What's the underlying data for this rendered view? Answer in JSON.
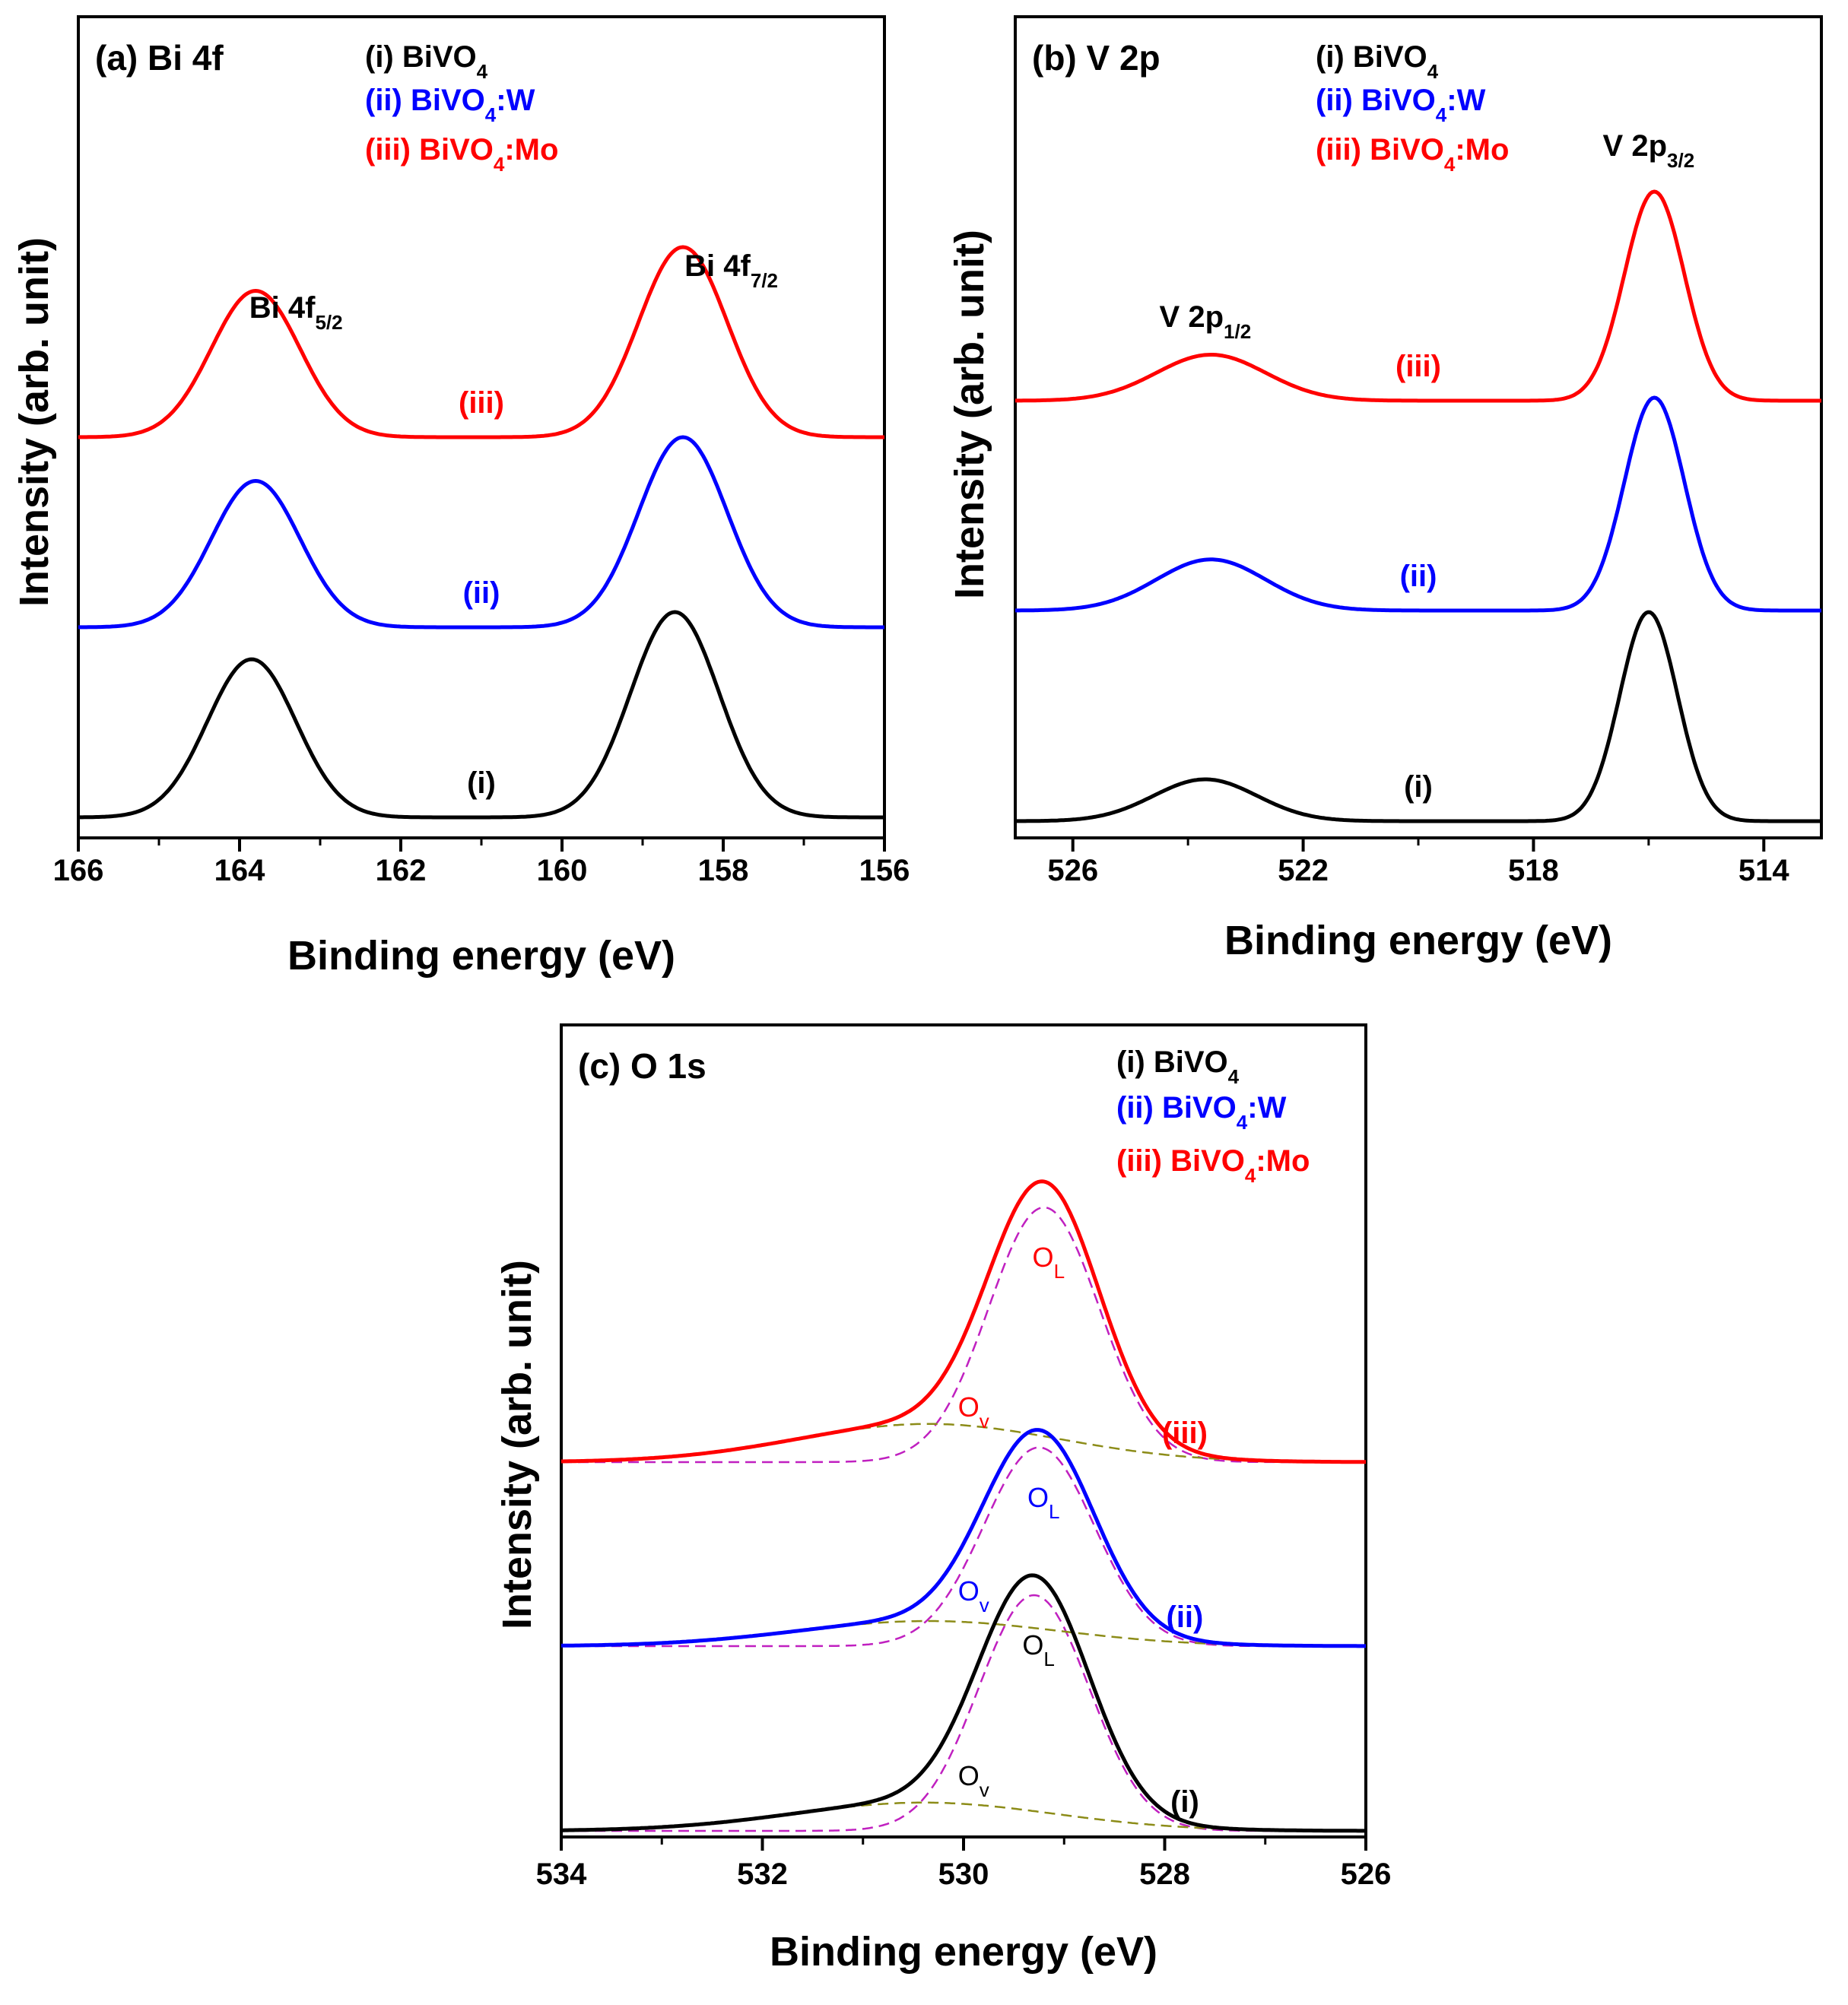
{
  "chart_data": [
    {
      "type": "line",
      "panel_label": "(a) Bi 4f",
      "xlabel": "Binding energy (eV)",
      "ylabel": "Intensity (arb. unit)",
      "xlim": [
        166,
        156
      ],
      "xticks": [
        "166",
        "164",
        "162",
        "160",
        "158",
        "156"
      ],
      "legend": [
        {
          "marker": "(i)",
          "base": "BiVO",
          "sub": "4",
          "suffix": "",
          "color": "#000000"
        },
        {
          "marker": "(ii)",
          "base": "BiVO",
          "sub": "4",
          "suffix": ":W",
          "color": "#0000ff"
        },
        {
          "marker": "(iii)",
          "base": "BiVO",
          "sub": "4",
          "suffix": ":Mo",
          "color": "#ff0000"
        }
      ],
      "peak_labels": [
        {
          "base": "Bi 4f",
          "sub": "5/2",
          "x": 163.3
        },
        {
          "base": "Bi 4f",
          "sub": "7/2",
          "x": 157.9
        }
      ],
      "series": [
        {
          "name": "(i)",
          "color": "#000000",
          "peaks": [
            {
              "center": 163.85,
              "amp": 0.77,
              "sigma": 0.55
            },
            {
              "center": 158.6,
              "amp": 1.0,
              "sigma": 0.55
            }
          ],
          "label_x": 161.0
        },
        {
          "name": "(ii)",
          "color": "#0000ff",
          "peaks": [
            {
              "center": 163.8,
              "amp": 0.77,
              "sigma": 0.55
            },
            {
              "center": 158.5,
              "amp": 1.0,
              "sigma": 0.55
            }
          ],
          "label_x": 161.0
        },
        {
          "name": "(iii)",
          "color": "#ff0000",
          "peaks": [
            {
              "center": 163.8,
              "amp": 0.77,
              "sigma": 0.55
            },
            {
              "center": 158.5,
              "amp": 1.0,
              "sigma": 0.55
            }
          ],
          "label_x": 161.0
        }
      ]
    },
    {
      "type": "line",
      "panel_label": "(b) V 2p",
      "xlabel": "Binding energy (eV)",
      "ylabel": "Intensity (arb. unit)",
      "xlim": [
        527,
        513
      ],
      "xticks": [
        "526",
        "522",
        "518",
        "514"
      ],
      "legend": [
        {
          "marker": "(i)",
          "base": "BiVO",
          "sub": "4",
          "suffix": "",
          "color": "#000000"
        },
        {
          "marker": "(ii)",
          "base": "BiVO",
          "sub": "4",
          "suffix": ":W",
          "color": "#0000ff"
        },
        {
          "marker": "(iii)",
          "base": "BiVO",
          "sub": "4",
          "suffix": ":Mo",
          "color": "#ff0000"
        }
      ],
      "peak_labels": [
        {
          "base": "V 2p",
          "sub": "1/2",
          "x": 523.7
        },
        {
          "base": "V 2p",
          "sub": "3/2",
          "x": 516.0
        }
      ],
      "series": [
        {
          "name": "(i)",
          "color": "#000000",
          "peaks": [
            {
              "center": 523.7,
              "amp": 0.2,
              "sigma": 0.9
            },
            {
              "center": 516.0,
              "amp": 1.0,
              "sigma": 0.5
            }
          ],
          "label_x": 520.0
        },
        {
          "name": "(ii)",
          "color": "#0000ff",
          "peaks": [
            {
              "center": 523.6,
              "amp": 0.24,
              "sigma": 0.95
            },
            {
              "center": 515.9,
              "amp": 1.0,
              "sigma": 0.52
            }
          ],
          "label_x": 520.0
        },
        {
          "name": "(iii)",
          "color": "#ff0000",
          "peaks": [
            {
              "center": 523.6,
              "amp": 0.22,
              "sigma": 0.95
            },
            {
              "center": 515.9,
              "amp": 1.0,
              "sigma": 0.52
            }
          ],
          "label_x": 520.0
        }
      ]
    },
    {
      "type": "line",
      "panel_label": "(c) O 1s",
      "xlabel": "Binding energy (eV)",
      "ylabel": "Intensity (arb. unit)",
      "xlim": [
        534,
        526
      ],
      "xticks": [
        "534",
        "532",
        "530",
        "528",
        "526"
      ],
      "legend": [
        {
          "marker": "(i)",
          "base": "BiVO",
          "sub": "4",
          "suffix": "",
          "color": "#000000"
        },
        {
          "marker": "(ii)",
          "base": "BiVO",
          "sub": "4",
          "suffix": ":W",
          "color": "#0000ff"
        },
        {
          "marker": "(iii)",
          "base": "BiVO",
          "sub": "4",
          "suffix": ":Mo",
          "color": "#ff0000"
        }
      ],
      "component_colors": {
        "lattice": "#c020c0",
        "vacancy": "#8c8c18"
      },
      "series": [
        {
          "name": "(i)",
          "color": "#000000",
          "lattice": {
            "center": 529.3,
            "amp": 1.0,
            "sigma": 0.55
          },
          "vacancy": {
            "center": 530.4,
            "amp": 0.12,
            "sigma": 1.3
          },
          "label_x": 527.8,
          "ol_label": {
            "base": "O",
            "sub": "L"
          },
          "ov_label": {
            "base": "O",
            "sub": "v"
          }
        },
        {
          "name": "(ii)",
          "color": "#0000ff",
          "lattice": {
            "center": 529.25,
            "amp": 0.95,
            "sigma": 0.55
          },
          "vacancy": {
            "center": 530.35,
            "amp": 0.12,
            "sigma": 1.3
          },
          "label_x": 527.8,
          "ol_label": {
            "base": "O",
            "sub": "L"
          },
          "ov_label": {
            "base": "O",
            "sub": "v"
          }
        },
        {
          "name": "(iii)",
          "color": "#ff0000",
          "lattice": {
            "center": 529.2,
            "amp": 1.0,
            "sigma": 0.55
          },
          "vacancy": {
            "center": 530.35,
            "amp": 0.15,
            "sigma": 1.3
          },
          "label_x": 527.8,
          "ol_label": {
            "base": "O",
            "sub": "L"
          },
          "ov_label": {
            "base": "O",
            "sub": "v"
          }
        }
      ]
    }
  ]
}
